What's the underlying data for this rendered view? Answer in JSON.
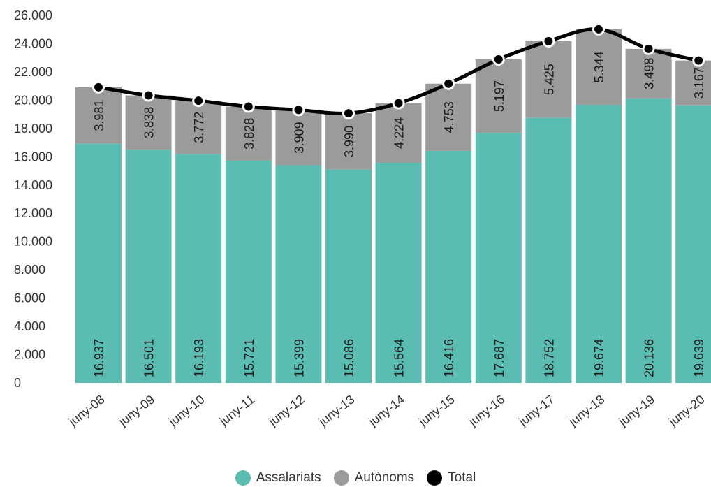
{
  "chart_data": {
    "type": "bar",
    "stacked": true,
    "categories": [
      "juny-08",
      "juny-09",
      "juny-10",
      "juny-11",
      "juny-12",
      "juny-13",
      "juny-14",
      "juny-15",
      "juny-16",
      "juny-17",
      "juny-18",
      "juny-19",
      "juny-20"
    ],
    "series": [
      {
        "name": "Assalariats",
        "type": "bar",
        "color": "#5bbdb2",
        "values": [
          16937,
          16501,
          16193,
          15721,
          15399,
          15086,
          15564,
          16416,
          17687,
          18752,
          19674,
          20136,
          19639
        ],
        "labels": [
          "16.937",
          "16.501",
          "16.193",
          "15.721",
          "15.399",
          "15.086",
          "15.564",
          "16.416",
          "17.687",
          "18.752",
          "19.674",
          "20.136",
          "19.639"
        ]
      },
      {
        "name": "Autònoms",
        "type": "bar",
        "color": "#9b9b9b",
        "values": [
          3981,
          3838,
          3772,
          3828,
          3909,
          3990,
          4224,
          4753,
          5197,
          5425,
          5344,
          3498,
          3167
        ],
        "labels": [
          "3.981",
          "3.838",
          "3.772",
          "3.828",
          "3.909",
          "3.990",
          "4.224",
          "4.753",
          "5.197",
          "5.425",
          "5.344",
          "3.498",
          "3.167"
        ]
      },
      {
        "name": "Total",
        "type": "line",
        "color": "#000000",
        "values": [
          20918,
          20339,
          19965,
          19549,
          19308,
          19076,
          19788,
          21169,
          22884,
          24177,
          25018,
          23634,
          22806
        ]
      }
    ],
    "y_ticks": [
      "0",
      "2.000",
      "4.000",
      "6.000",
      "8.000",
      "10.000",
      "12.000",
      "14.000",
      "16.000",
      "18.000",
      "20.000",
      "22.000",
      "24.000",
      "26.000"
    ],
    "ylim": [
      0,
      26000
    ],
    "grid": false,
    "legend_position": "bottom"
  }
}
